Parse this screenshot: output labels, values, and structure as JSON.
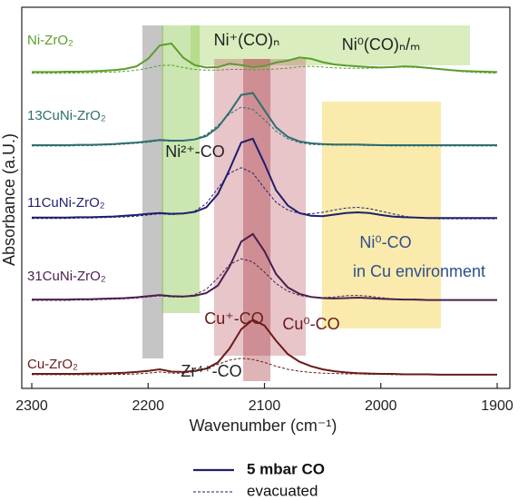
{
  "chart_data": {
    "type": "line",
    "xlabel": "Wavenumber (cm⁻¹)",
    "ylabel": "Absorbance (a.U.)",
    "xlim": [
      2308.6,
      1889.1
    ],
    "xticks": [
      2300,
      2200,
      2100,
      2000,
      1900
    ],
    "ylim": [
      0,
      100
    ],
    "legend": [
      "5 mbar CO",
      "evacuated"
    ],
    "x": [
      2300,
      2290,
      2280,
      2270,
      2260,
      2250,
      2240,
      2230,
      2220,
      2210,
      2200,
      2190,
      2180,
      2170,
      2160,
      2150,
      2140,
      2130,
      2120,
      2110,
      2100,
      2090,
      2080,
      2070,
      2060,
      2050,
      2040,
      2030,
      2020,
      2010,
      2000,
      1990,
      1980,
      1970,
      1960,
      1950,
      1940,
      1930,
      1920,
      1910,
      1900
    ],
    "bands": [
      {
        "label": "Ni⁺(CO)ₙ",
        "label2": "Ni⁰(CO)ₙ/ₘ",
        "x": [
          2163.5,
          1923.4
        ],
        "color": "rgba(170,215,110,0.45)"
      },
      {
        "label": "Zr⁴⁺-CO",
        "x": [
          2204.9,
          2186.9
        ],
        "color": "rgba(150,150,150,0.55)"
      },
      {
        "label": "Ni²⁺-CO",
        "x": [
          2188.5,
          2155.7
        ],
        "color": "rgba(140,200,80,0.45)"
      },
      {
        "label": "Cu⁺-CO",
        "x": [
          2143.3,
          2064.5
        ],
        "color": "rgba(185,90,100,0.35)"
      },
      {
        "label": "Cu⁰-CO",
        "x": [
          2118.3,
          2094.9
        ],
        "color": "rgba(160,40,50,0.35)"
      },
      {
        "label": "Ni⁰-CO",
        "label2": "in Cu environment",
        "x": [
          2050.5,
          1948.3
        ],
        "color": "rgba(245,215,90,0.5)"
      }
    ],
    "samples": [
      {
        "name": "Ni-ZrO₂",
        "color": "#5a9e2a",
        "co": [
          83.0,
          83.0,
          83.0,
          83.1,
          83.1,
          83.2,
          83.3,
          83.5,
          83.8,
          84.5,
          86.5,
          90.0,
          90.5,
          86.8,
          84.8,
          84.2,
          84.3,
          85.2,
          84.8,
          84.3,
          84.6,
          85.5,
          86.0,
          86.8,
          86.5,
          85.6,
          85.0,
          84.7,
          84.5,
          84.3,
          84.2,
          84.3,
          84.5,
          84.4,
          84.1,
          83.8,
          83.5,
          83.3,
          83.2,
          83.1,
          83.0
        ],
        "evacuated": [
          82.7,
          82.7,
          82.7,
          82.7,
          82.8,
          82.8,
          82.9,
          83.0,
          83.2,
          83.5,
          84.0,
          84.7,
          84.8,
          84.2,
          83.7,
          83.5,
          83.5,
          83.7,
          83.7,
          83.6,
          83.6,
          83.8,
          84.0,
          84.4,
          84.5,
          84.3,
          84.1,
          84.0,
          84.0,
          84.0,
          84.1,
          84.2,
          84.3,
          84.2,
          84.0,
          83.7,
          83.4,
          83.1,
          82.9,
          82.8,
          82.7
        ]
      },
      {
        "name": "13CuNi-ZrO₂",
        "color": "#2e6e6e",
        "co": [
          63.8,
          63.8,
          63.8,
          63.8,
          63.9,
          63.9,
          64.0,
          64.1,
          64.3,
          64.5,
          64.8,
          65.2,
          65.0,
          65.0,
          65.3,
          66.2,
          68.5,
          72.5,
          77.0,
          77.5,
          73.0,
          68.5,
          66.0,
          64.8,
          64.3,
          64.1,
          64.0,
          64.0,
          64.0,
          63.9,
          63.8,
          63.8,
          63.8,
          63.8,
          63.8,
          63.8,
          63.8,
          63.8,
          63.8,
          63.8,
          63.8
        ],
        "evacuated": [
          63.6,
          63.6,
          63.6,
          63.6,
          63.7,
          63.7,
          63.8,
          63.9,
          64.1,
          64.3,
          64.6,
          65.0,
          64.8,
          64.9,
          65.4,
          66.6,
          69.0,
          72.0,
          73.8,
          73.2,
          70.5,
          67.5,
          65.5,
          64.5,
          64.0,
          63.9,
          63.8,
          63.8,
          63.8,
          63.7,
          63.7,
          63.6,
          63.6,
          63.6,
          63.6,
          63.6,
          63.6,
          63.6,
          63.6,
          63.6,
          63.6
        ]
      },
      {
        "name": "11CuNi-ZrO₂",
        "color": "#1f1f6e",
        "co": [
          44.8,
          44.8,
          44.8,
          44.8,
          44.9,
          44.9,
          45.0,
          45.1,
          45.3,
          45.5,
          45.8,
          46.0,
          45.8,
          45.9,
          46.3,
          47.5,
          51.0,
          57.5,
          64.5,
          65.5,
          59.0,
          52.0,
          48.0,
          46.0,
          45.3,
          45.2,
          45.6,
          46.0,
          46.2,
          46.0,
          45.5,
          45.1,
          44.9,
          44.8,
          44.7,
          44.7,
          44.7,
          44.7,
          44.7,
          44.7,
          44.7
        ],
        "evacuated": [
          44.6,
          44.6,
          44.6,
          44.6,
          44.7,
          44.7,
          44.8,
          44.9,
          45.0,
          45.2,
          45.5,
          45.8,
          45.6,
          45.8,
          46.5,
          48.5,
          52.5,
          56.5,
          57.9,
          56.5,
          52.5,
          48.8,
          46.8,
          45.9,
          45.8,
          46.2,
          46.8,
          47.3,
          47.5,
          47.2,
          46.5,
          45.8,
          45.2,
          44.8,
          44.6,
          44.5,
          44.5,
          44.5,
          44.5,
          44.5,
          44.5
        ]
      },
      {
        "name": "31CuNi-ZrO₂",
        "color": "#4a1f4f",
        "co": [
          23.3,
          23.3,
          23.3,
          23.3,
          23.4,
          23.4,
          23.5,
          23.6,
          23.7,
          23.9,
          24.2,
          24.5,
          24.2,
          24.1,
          24.3,
          25.0,
          27.0,
          32.0,
          38.5,
          40.5,
          36.0,
          30.0,
          26.5,
          24.8,
          24.0,
          23.7,
          23.6,
          23.7,
          23.8,
          23.7,
          23.5,
          23.4,
          23.3,
          23.3,
          23.2,
          23.2,
          23.2,
          23.2,
          23.2,
          23.2,
          23.2
        ],
        "evacuated": [
          23.1,
          23.1,
          23.1,
          23.1,
          23.2,
          23.2,
          23.3,
          23.4,
          23.5,
          23.7,
          24.0,
          24.3,
          24.0,
          24.0,
          24.6,
          26.0,
          29.0,
          32.5,
          34.0,
          33.2,
          30.5,
          27.5,
          25.5,
          24.4,
          23.9,
          23.8,
          24.0,
          24.3,
          24.4,
          24.2,
          23.8,
          23.5,
          23.3,
          23.2,
          23.1,
          23.1,
          23.1,
          23.1,
          23.1,
          23.1,
          23.1
        ]
      },
      {
        "name": "Cu-ZrO₂",
        "color": "#6b1a1a",
        "co": [
          3.8,
          3.8,
          3.8,
          3.8,
          3.8,
          3.9,
          3.9,
          4.0,
          4.1,
          4.3,
          4.6,
          5.0,
          4.4,
          4.3,
          4.6,
          5.2,
          6.8,
          10.5,
          15.5,
          18.0,
          16.5,
          12.5,
          9.0,
          7.0,
          5.8,
          5.0,
          4.5,
          4.2,
          4.0,
          3.9,
          3.8,
          3.8,
          3.7,
          3.7,
          3.7,
          3.6,
          3.6,
          3.6,
          3.6,
          3.6,
          3.6
        ],
        "evacuated": [
          3.6,
          3.6,
          3.6,
          3.6,
          3.6,
          3.6,
          3.6,
          3.7,
          3.7,
          3.8,
          4.0,
          4.3,
          4.0,
          4.0,
          4.4,
          5.2,
          6.3,
          7.4,
          7.9,
          7.6,
          6.8,
          5.8,
          5.0,
          4.5,
          4.2,
          4.0,
          3.9,
          3.8,
          3.8,
          3.7,
          3.7,
          3.6,
          3.6,
          3.6,
          3.6,
          3.6,
          3.6,
          3.6,
          3.6,
          3.6,
          3.6
        ]
      }
    ]
  }
}
